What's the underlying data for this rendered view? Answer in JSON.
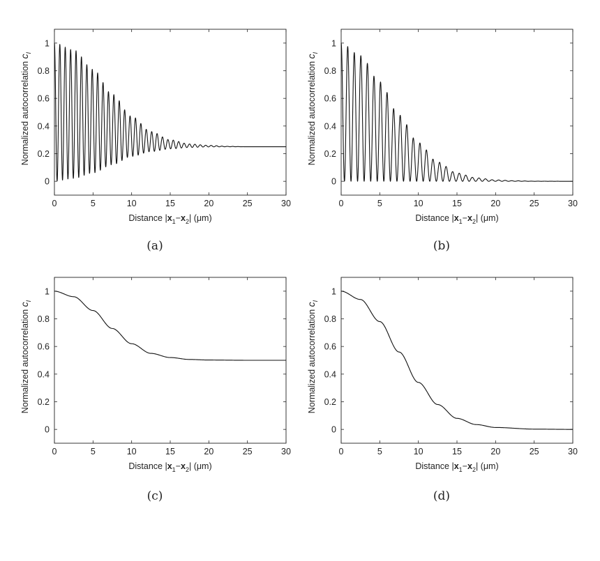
{
  "chart_data": [
    {
      "panel": "(a)",
      "type": "line",
      "xlabel": "Distance |x1−x2| (μm)",
      "ylabel": "Normalized autocorrelation c_I",
      "xlim": [
        0,
        30
      ],
      "ylim": [
        -0.1,
        1.1
      ],
      "xticks": [
        0,
        5,
        10,
        15,
        20,
        25,
        30
      ],
      "yticks": [
        0,
        0.2,
        0.4,
        0.6,
        0.8,
        1
      ],
      "grid": false,
      "series": [
        {
          "description": "oscillation between envelopes",
          "upper_envelope": {
            "x": [
              0,
              2.5,
              5,
              7.5,
              10,
              12.5,
              15,
              17.5,
              20,
              22.5,
              25,
              30
            ],
            "y": [
              1.0,
              0.95,
              0.81,
              0.63,
              0.47,
              0.36,
              0.3,
              0.27,
              0.26,
              0.253,
              0.25,
              0.25
            ]
          },
          "lower_envelope": {
            "x": [
              0,
              2.5,
              5,
              7.5,
              10,
              12.5,
              15,
              17.5,
              20,
              22.5,
              25,
              30
            ],
            "y": [
              0.0,
              0.02,
              0.06,
              0.12,
              0.18,
              0.215,
              0.235,
              0.245,
              0.249,
              0.25,
              0.25,
              0.25
            ]
          },
          "period": 0.7
        }
      ]
    },
    {
      "panel": "(b)",
      "type": "line",
      "xlabel": "Distance |x1−x2| (μm)",
      "ylabel": "Normalized autocorrelation c_I",
      "xlim": [
        0,
        30
      ],
      "ylim": [
        -0.1,
        1.1
      ],
      "xticks": [
        0,
        5,
        10,
        15,
        20,
        25,
        30
      ],
      "yticks": [
        0,
        0.2,
        0.4,
        0.6,
        0.8,
        1
      ],
      "grid": false,
      "series": [
        {
          "description": "oscillation between envelopes",
          "upper_envelope": {
            "x": [
              0,
              2.5,
              5,
              7.5,
              10,
              12.5,
              15,
              17.5,
              20,
              22.5,
              25,
              30
            ],
            "y": [
              1.0,
              0.91,
              0.72,
              0.48,
              0.28,
              0.14,
              0.06,
              0.025,
              0.01,
              0.004,
              0.001,
              0.0
            ]
          },
          "lower_envelope": {
            "x": [
              0,
              30
            ],
            "y": [
              0,
              0
            ]
          },
          "period": 0.85
        }
      ]
    },
    {
      "panel": "(c)",
      "type": "line",
      "xlabel": "Distance |x1−x2| (μm)",
      "ylabel": "Normalized autocorrelation c_I",
      "xlim": [
        0,
        30
      ],
      "ylim": [
        -0.1,
        1.1
      ],
      "xticks": [
        0,
        5,
        10,
        15,
        20,
        25,
        30
      ],
      "yticks": [
        0,
        0.2,
        0.4,
        0.6,
        0.8,
        1
      ],
      "grid": false,
      "series": [
        {
          "x": [
            0,
            2.5,
            5,
            7.5,
            10,
            12.5,
            15,
            17.5,
            20,
            25,
            30
          ],
          "y": [
            1.0,
            0.96,
            0.86,
            0.73,
            0.62,
            0.55,
            0.52,
            0.506,
            0.502,
            0.5,
            0.5
          ]
        }
      ]
    },
    {
      "panel": "(d)",
      "type": "line",
      "xlabel": "Distance |x1−x2| (μm)",
      "ylabel": "Normalized autocorrelation c_I",
      "xlim": [
        0,
        30
      ],
      "ylim": [
        -0.1,
        1.1
      ],
      "xticks": [
        0,
        5,
        10,
        15,
        20,
        25,
        30
      ],
      "yticks": [
        0,
        0.2,
        0.4,
        0.6,
        0.8,
        1
      ],
      "grid": false,
      "series": [
        {
          "x": [
            0,
            2.5,
            5,
            7.5,
            10,
            12.5,
            15,
            17.5,
            20,
            25,
            30
          ],
          "y": [
            1.0,
            0.94,
            0.78,
            0.56,
            0.34,
            0.18,
            0.08,
            0.035,
            0.014,
            0.002,
            0.0
          ]
        }
      ]
    }
  ],
  "labels": {
    "xlabel_prefix": "Distance |",
    "x1": "x",
    "sub1": "1",
    "minus": "−",
    "x2": "x",
    "sub2": "2",
    "xlabel_suffix": "|  (μm)",
    "ylabel": "Normalized autocorrelation",
    "ylabel_sym": "c",
    "ylabel_sub": "I"
  },
  "captions": [
    "(a)",
    "(b)",
    "(c)",
    "(d)"
  ]
}
